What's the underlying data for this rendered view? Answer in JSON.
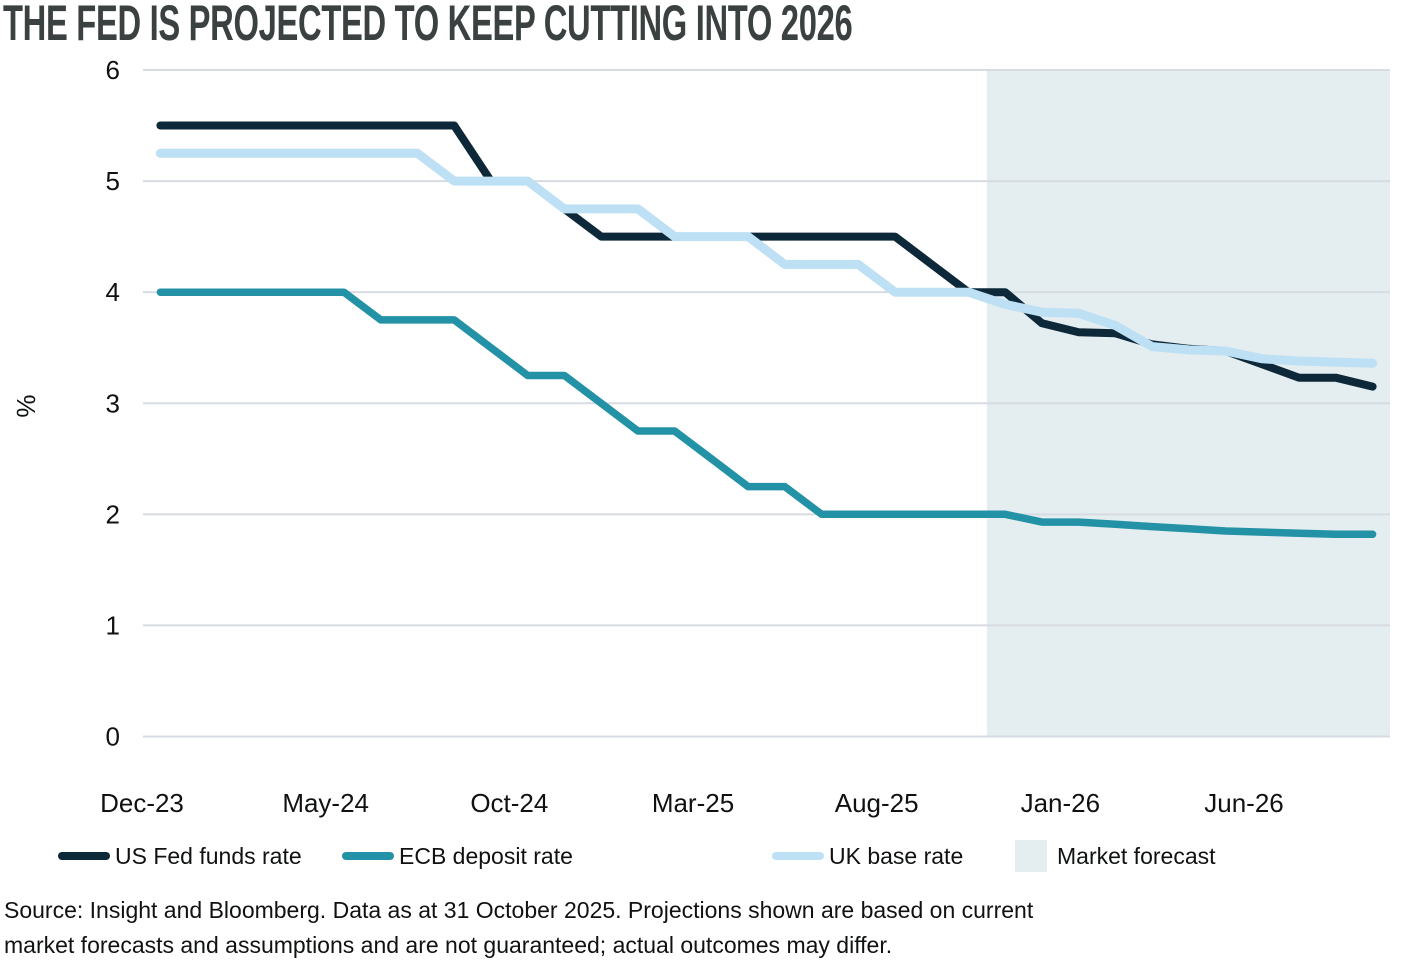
{
  "page": {
    "title": "THE FED IS PROJECTED TO KEEP CUTTING INTO 2026",
    "source_lines": [
      "Source: Insight and Bloomberg. Data as at 31 October 2025. Projections shown are based on current",
      "market forecasts and assumptions and are not guaranteed; actual outcomes may differ."
    ]
  },
  "legend": {
    "items": [
      {
        "label": "US Fed funds rate",
        "type": "line",
        "color": "#0d2839"
      },
      {
        "label": "ECB deposit rate",
        "type": "line",
        "color": "#2392a6"
      },
      {
        "label": "UK base rate",
        "type": "line",
        "color": "#bde0f5"
      },
      {
        "label": "Market forecast",
        "type": "box",
        "color": "#e4edf0"
      }
    ]
  },
  "chart_data": {
    "type": "line",
    "title": "THE FED IS PROJECTED TO KEEP CUTTING INTO 2026",
    "xlabel": "",
    "ylabel": "%",
    "ylim": [
      0,
      6
    ],
    "y_ticks": [
      0,
      1,
      2,
      3,
      4,
      5,
      6
    ],
    "grid": true,
    "gridline_color": "#d7dbe2",
    "legend_position": "bottom",
    "x_tick_labels": [
      "Dec-23",
      "May-24",
      "Oct-24",
      "Mar-25",
      "Aug-25",
      "Jan-26",
      "Jun-26"
    ],
    "x_tick_month_indices": [
      0,
      5,
      10,
      15,
      20,
      25,
      30
    ],
    "months": [
      "Dec-23",
      "Jan-24",
      "Feb-24",
      "Mar-24",
      "Apr-24",
      "May-24",
      "Jun-24",
      "Jul-24",
      "Aug-24",
      "Sep-24",
      "Oct-24",
      "Nov-24",
      "Dec-24",
      "Jan-25",
      "Feb-25",
      "Mar-25",
      "Apr-25",
      "May-25",
      "Jun-25",
      "Jul-25",
      "Aug-25",
      "Sep-25",
      "Oct-25",
      "Nov-25",
      "Dec-25",
      "Jan-26",
      "Feb-26",
      "Mar-26",
      "Apr-26",
      "May-26",
      "Jun-26",
      "Jul-26",
      "Aug-26",
      "Sep-26"
    ],
    "forecast_start_month": "Nov-25",
    "forecast_start_index": 23,
    "forecast_band_label": "Market forecast",
    "forecast_band_color": "#e4edf0",
    "series": [
      {
        "name": "US Fed funds rate",
        "color": "#0d2839",
        "values": [
          5.5,
          5.5,
          5.5,
          5.5,
          5.5,
          5.5,
          5.5,
          5.5,
          5.5,
          5.0,
          5.0,
          4.75,
          4.5,
          4.5,
          4.5,
          4.5,
          4.5,
          4.5,
          4.5,
          4.5,
          4.5,
          4.25,
          4.0,
          4.0,
          3.72,
          3.64,
          3.63,
          3.53,
          3.49,
          3.47,
          3.35,
          3.23,
          3.23,
          3.15
        ]
      },
      {
        "name": "ECB deposit rate",
        "color": "#2392a6",
        "values": [
          4.0,
          4.0,
          4.0,
          4.0,
          4.0,
          4.0,
          3.75,
          3.75,
          3.75,
          3.5,
          3.25,
          3.25,
          3.0,
          2.75,
          2.75,
          2.5,
          2.25,
          2.25,
          2.0,
          2.0,
          2.0,
          2.0,
          2.0,
          2.0,
          1.93,
          1.93,
          1.91,
          1.89,
          1.87,
          1.85,
          1.84,
          1.83,
          1.82,
          1.82
        ]
      },
      {
        "name": "UK base rate",
        "color": "#bde0f5",
        "values": [
          5.25,
          5.25,
          5.25,
          5.25,
          5.25,
          5.25,
          5.25,
          5.25,
          5.0,
          5.0,
          5.0,
          4.75,
          4.75,
          4.75,
          4.5,
          4.5,
          4.5,
          4.25,
          4.25,
          4.25,
          4.0,
          4.0,
          4.0,
          3.89,
          3.82,
          3.81,
          3.7,
          3.51,
          3.48,
          3.47,
          3.4,
          3.38,
          3.37,
          3.36
        ]
      }
    ]
  }
}
